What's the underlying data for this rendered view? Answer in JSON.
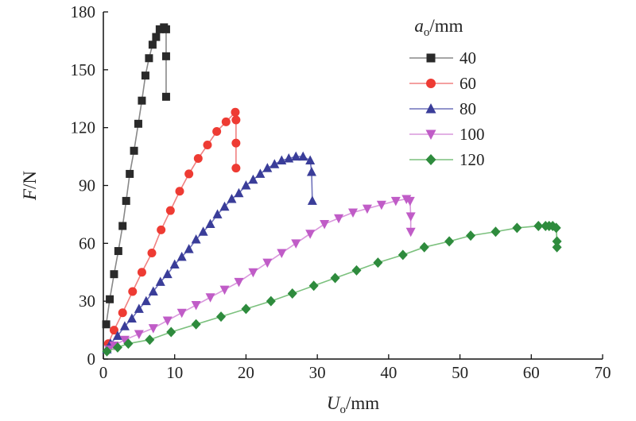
{
  "chart_data": {
    "type": "line",
    "xlabel": {
      "italic": "U",
      "sub": "o",
      "unit": "/mm"
    },
    "ylabel": {
      "italic": "F",
      "unit": "/N"
    },
    "xlim": [
      0,
      70
    ],
    "ylim": [
      0,
      180
    ],
    "xticks": [
      0,
      10,
      20,
      30,
      40,
      50,
      60,
      70
    ],
    "yticks": [
      0,
      30,
      60,
      90,
      120,
      150,
      180
    ],
    "grid": false,
    "legend": {
      "placement": "top-right",
      "title": {
        "italic": "a",
        "sub": "o",
        "unit": "/mm"
      }
    },
    "series": [
      {
        "name": "40",
        "color": "#2a2a2a",
        "line_color": "#888888",
        "marker": "square",
        "x": [
          0.4,
          0.9,
          1.5,
          2.1,
          2.7,
          3.2,
          3.7,
          4.3,
          4.9,
          5.4,
          5.9,
          6.4,
          6.9,
          7.4,
          7.9,
          8.5,
          8.8,
          8.8,
          8.8
        ],
        "y": [
          18,
          31,
          44,
          56,
          69,
          82,
          96,
          108,
          122,
          134,
          147,
          156,
          163,
          167,
          171,
          172,
          171,
          157,
          136
        ]
      },
      {
        "name": "60",
        "color": "#ee3b33",
        "line_color": "#f08080",
        "marker": "circle",
        "x": [
          0.7,
          1.5,
          2.7,
          4.1,
          5.4,
          6.8,
          8.1,
          9.4,
          10.7,
          12.0,
          13.3,
          14.6,
          15.9,
          17.2,
          18.5,
          18.6,
          18.6,
          18.6
        ],
        "y": [
          8,
          15,
          24,
          35,
          45,
          55,
          67,
          77,
          87,
          96,
          104,
          111,
          118,
          123,
          128,
          124,
          112,
          99
        ]
      },
      {
        "name": "80",
        "color": "#3a3d99",
        "line_color": "#6f72bb",
        "marker": "triangle-up",
        "x": [
          0.5,
          1.0,
          2.0,
          3.0,
          4.0,
          5.0,
          6.0,
          7.0,
          8.0,
          9.0,
          10.0,
          11.0,
          12.0,
          13.0,
          14.0,
          15.0,
          16.0,
          17.0,
          18.0,
          19.0,
          20.0,
          21.0,
          22.0,
          23.0,
          24.0,
          25.0,
          26.0,
          27.0,
          28.0,
          29.0,
          29.2,
          29.3
        ],
        "y": [
          5,
          8,
          12,
          17,
          21,
          26,
          30,
          35,
          40,
          44,
          49,
          53,
          57,
          62,
          66,
          70,
          75,
          79,
          83,
          86,
          90,
          93,
          96,
          99,
          101,
          103,
          104,
          105,
          105,
          103,
          97,
          82
        ]
      },
      {
        "name": "100",
        "color": "#c05cc7",
        "line_color": "#d997dc",
        "marker": "triangle-down",
        "x": [
          0.8,
          1.5,
          3.0,
          5.0,
          7.0,
          9.0,
          11.0,
          13.0,
          15.0,
          17.0,
          19.0,
          21.0,
          23.0,
          25.0,
          27.0,
          29.0,
          31.0,
          33.0,
          35.0,
          37.0,
          39.0,
          41.0,
          42.5,
          43.0,
          43.1,
          43.1
        ],
        "y": [
          5,
          7,
          10,
          13,
          16,
          20,
          24,
          28,
          32,
          36,
          40,
          45,
          50,
          55,
          60,
          65,
          70,
          73,
          76,
          78,
          80,
          82,
          83,
          82,
          74,
          66
        ]
      },
      {
        "name": "120",
        "color": "#2e8b3d",
        "line_color": "#7cc17e",
        "marker": "diamond",
        "x": [
          0.5,
          2.0,
          3.5,
          6.5,
          9.5,
          13.0,
          16.5,
          20.0,
          23.5,
          26.5,
          29.5,
          32.5,
          35.5,
          38.5,
          42.0,
          45.0,
          48.5,
          51.5,
          55.0,
          58.0,
          61.0,
          62.0,
          62.5,
          63.0,
          63.5,
          63.6,
          63.6
        ],
        "y": [
          4,
          6,
          8,
          10,
          14,
          18,
          22,
          26,
          30,
          34,
          38,
          42,
          46,
          50,
          54,
          58,
          61,
          64,
          66,
          68,
          69,
          69,
          69,
          69,
          68,
          61,
          58
        ]
      }
    ]
  }
}
